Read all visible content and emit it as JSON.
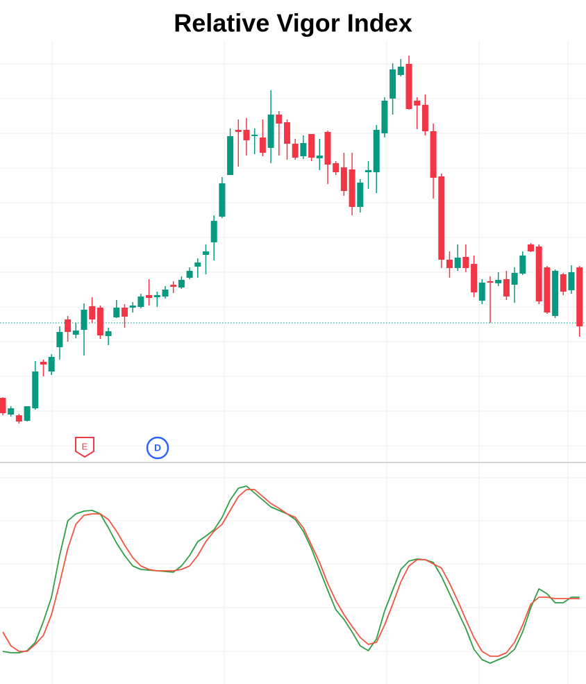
{
  "chart_data": [
    {
      "type": "candlestick",
      "title": "Relative Vigor Index",
      "open": [
        92,
        68,
        67,
        59,
        77,
        144,
        130,
        165,
        205,
        183,
        190,
        224,
        222,
        181,
        208,
        222,
        222,
        223,
        240,
        237,
        238,
        255,
        251,
        265,
        281,
        298,
        316,
        353,
        413,
        478,
        478,
        469,
        467,
        452,
        500,
        489,
        458,
        440,
        472,
        437,
        475,
        430,
        424,
        421,
        367,
        417,
        417,
        473,
        523,
        557,
        573,
        520,
        514,
        476,
        411,
        291,
        279,
        295,
        285,
        232,
        260,
        257,
        263,
        255,
        271,
        313,
        310,
        280,
        210,
        270,
        247,
        280
      ],
      "high": [
        93,
        80,
        69,
        80,
        145,
        147,
        155,
        195,
        210,
        200,
        228,
        237,
        225,
        193,
        233,
        227,
        230,
        242,
        263,
        245,
        253,
        260,
        267,
        280,
        293,
        313,
        355,
        410,
        480,
        493,
        495,
        480,
        493,
        535,
        505,
        493,
        465,
        470,
        472,
        465,
        477,
        433,
        445,
        445,
        407,
        433,
        485,
        525,
        574,
        580,
        585,
        525,
        529,
        487,
        415,
        303,
        313,
        313,
        297,
        263,
        267,
        273,
        275,
        280,
        303,
        315,
        313,
        282,
        277,
        272,
        283,
        282
      ],
      "low": [
        67,
        65,
        55,
        58,
        75,
        123,
        125,
        147,
        173,
        178,
        153,
        200,
        177,
        168,
        207,
        193,
        215,
        221,
        225,
        223,
        235,
        243,
        249,
        263,
        265,
        270,
        290,
        351,
        413,
        425,
        441,
        443,
        440,
        430,
        441,
        435,
        435,
        436,
        433,
        420,
        400,
        413,
        383,
        355,
        359,
        393,
        387,
        467,
        500,
        555,
        507,
        479,
        470,
        379,
        279,
        265,
        275,
        273,
        237,
        227,
        200,
        253,
        233,
        229,
        269,
        302,
        227,
        213,
        207,
        240,
        242,
        180
      ],
      "close": [
        70,
        77,
        58,
        80,
        130,
        140,
        151,
        187,
        187,
        189,
        219,
        205,
        182,
        188,
        222,
        209,
        225,
        238,
        236,
        240,
        248,
        252,
        262,
        275,
        287,
        303,
        347,
        401,
        469,
        475,
        463,
        471,
        445,
        500,
        487,
        458,
        438,
        459,
        438,
        441,
        428,
        417,
        390,
        367,
        402,
        420,
        478,
        520,
        565,
        569,
        508,
        513,
        476,
        409,
        291,
        279,
        294,
        279,
        244,
        258,
        258,
        262,
        238,
        272,
        297,
        303,
        231,
        215,
        275,
        245,
        273,
        195
      ],
      "up_color": "#089981",
      "down_color": "#f23645",
      "price_line": 200,
      "price_line_color": "#26a69a",
      "ylim": [
        0,
        605
      ],
      "markers": [
        {
          "label": "E",
          "color": "#f23645"
        },
        {
          "label": "D",
          "color": "#2962ff"
        }
      ]
    },
    {
      "type": "line",
      "series": [
        {
          "color": "#2e9e45",
          "values": [
            47,
            45,
            45,
            48,
            60,
            90,
            125,
            185,
            235,
            245,
            249,
            250,
            245,
            225,
            203,
            185,
            170,
            165,
            164,
            163,
            162,
            161,
            170,
            185,
            205,
            213,
            222,
            240,
            265,
            282,
            285,
            275,
            265,
            255,
            250,
            245,
            237,
            220,
            195,
            165,
            135,
            107,
            93,
            75,
            55,
            48,
            65,
            105,
            135,
            165,
            177,
            180,
            179,
            175,
            155,
            130,
            105,
            80,
            50,
            35,
            30,
            35,
            40,
            50,
            75,
            110,
            137,
            130,
            117,
            117,
            125,
            125
          ]
        },
        {
          "color": "#f2533f",
          "values": [
            75,
            55,
            47,
            47,
            57,
            70,
            100,
            145,
            195,
            230,
            243,
            245,
            245,
            237,
            220,
            200,
            182,
            170,
            165,
            163,
            163,
            163,
            165,
            170,
            185,
            205,
            220,
            230,
            250,
            270,
            280,
            280,
            270,
            260,
            253,
            245,
            240,
            225,
            200,
            175,
            145,
            120,
            100,
            83,
            67,
            57,
            60,
            85,
            115,
            147,
            170,
            179,
            179,
            173,
            167,
            145,
            120,
            93,
            67,
            47,
            40,
            40,
            45,
            60,
            85,
            115,
            125,
            125,
            123,
            123,
            123,
            123
          ]
        }
      ],
      "ylim": [
        0,
        315
      ]
    }
  ]
}
